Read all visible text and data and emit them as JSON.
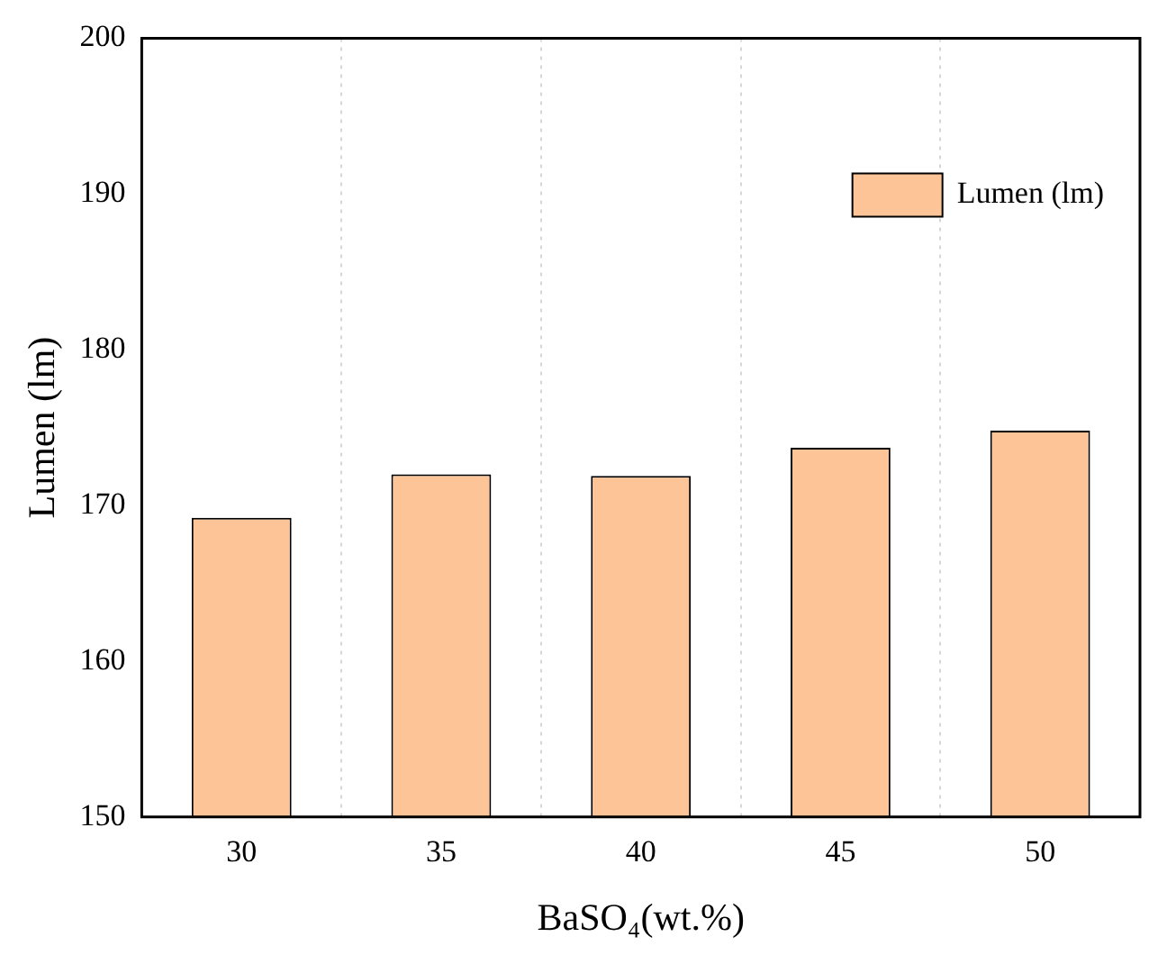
{
  "chart_data": {
    "type": "bar",
    "xlabel": "BaSO₄(wt.%)",
    "ylabel": "Lumen (lm)",
    "categories": [
      "30",
      "35",
      "40",
      "45",
      "50"
    ],
    "series": [
      {
        "name": "Lumen (lm)",
        "color": "#fdc597",
        "values": [
          169.2,
          172.0,
          171.9,
          173.7,
          174.8
        ]
      }
    ],
    "ylim": [
      150,
      200
    ],
    "yticks": [
      150,
      160,
      170,
      180,
      190,
      200
    ],
    "grid": "x",
    "legend": "top right"
  }
}
